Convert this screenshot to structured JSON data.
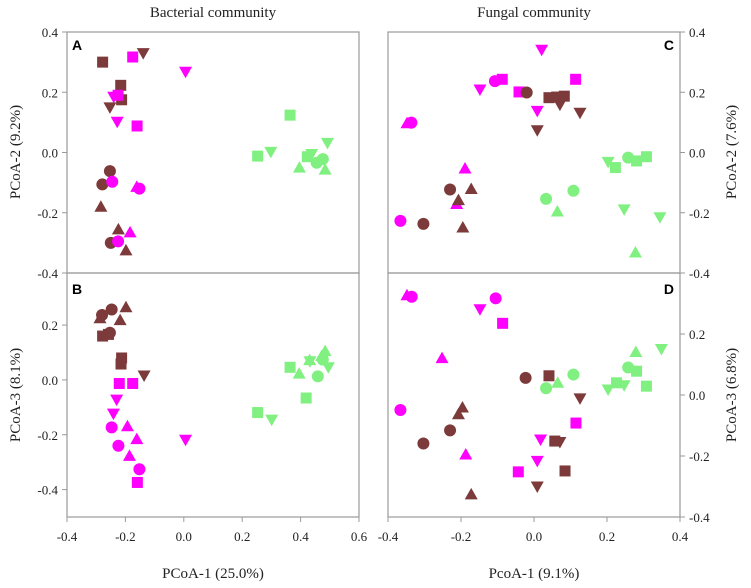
{
  "colors": {
    "site_brown": "#7d3a3a",
    "site_magenta": "#ff00ff",
    "site_green": "#80f080",
    "frame": "#999999"
  },
  "column_titles": {
    "left": "Bacterial community",
    "right": "Fungal community"
  },
  "axis_titles": {
    "left_x": "PCoA-1 (25.0%)",
    "right_x": "PcoA-1 (9.1%)",
    "A_y": "PCoA-2 (9.2%)",
    "B_y": "PCoA-3 (8.1%)",
    "C_y": "PCoA-2 (7.6%)",
    "D_y": "PCoA-3 (6.8%)"
  },
  "chart_data": [
    {
      "type": "scatter",
      "panel": "A",
      "title": "Bacterial community",
      "xlabel": "PCoA-1 (25.0%)",
      "ylabel": "PCoA-2 (9.2%)",
      "xlim": [
        -0.4,
        0.6
      ],
      "ylim": [
        -0.4,
        0.4
      ],
      "yticks": [
        0.4,
        0.2,
        0.0,
        -0.2,
        -0.4
      ],
      "ytick_labels": [
        "0.4",
        "0.2",
        "0.0",
        "-0.2",
        "-0.4"
      ],
      "grid": false,
      "points": [
        [
          -0.278,
          0.3,
          "brown",
          "square"
        ],
        [
          -0.175,
          0.317,
          "magenta",
          "square"
        ],
        [
          -0.139,
          0.33,
          "brown",
          "down"
        ],
        [
          0.006,
          0.268,
          "magenta",
          "down"
        ],
        [
          -0.216,
          0.223,
          "brown",
          "square"
        ],
        [
          -0.213,
          0.175,
          "brown",
          "square"
        ],
        [
          -0.24,
          0.185,
          "magenta",
          "down"
        ],
        [
          -0.225,
          0.19,
          "magenta",
          "square"
        ],
        [
          -0.253,
          0.15,
          "brown",
          "down"
        ],
        [
          -0.228,
          0.102,
          "magenta",
          "down"
        ],
        [
          -0.16,
          0.088,
          "magenta",
          "square"
        ],
        [
          0.364,
          0.124,
          "green",
          "square"
        ],
        [
          0.253,
          -0.012,
          "green",
          "square"
        ],
        [
          0.298,
          0.002,
          "green",
          "down"
        ],
        [
          0.492,
          0.032,
          "green",
          "down"
        ],
        [
          0.423,
          -0.014,
          "green",
          "square"
        ],
        [
          0.438,
          -0.005,
          "green",
          "down"
        ],
        [
          0.455,
          -0.034,
          "green",
          "circle"
        ],
        [
          0.476,
          -0.022,
          "green",
          "circle"
        ],
        [
          0.396,
          -0.05,
          "green",
          "up"
        ],
        [
          0.484,
          -0.057,
          "green",
          "up"
        ],
        [
          -0.253,
          -0.062,
          "brown",
          "circle"
        ],
        [
          -0.279,
          -0.106,
          "brown",
          "circle"
        ],
        [
          -0.245,
          -0.097,
          "magenta",
          "circle"
        ],
        [
          -0.161,
          -0.114,
          "magenta",
          "up"
        ],
        [
          -0.152,
          -0.12,
          "magenta",
          "circle"
        ],
        [
          -0.284,
          -0.18,
          "brown",
          "up"
        ],
        [
          -0.224,
          -0.255,
          "brown",
          "up"
        ],
        [
          -0.184,
          -0.265,
          "magenta",
          "up"
        ],
        [
          -0.25,
          -0.3,
          "brown",
          "circle"
        ],
        [
          -0.225,
          -0.295,
          "magenta",
          "circle"
        ],
        [
          -0.198,
          -0.325,
          "brown",
          "up"
        ]
      ]
    },
    {
      "type": "scatter",
      "panel": "B",
      "xlabel": "PCoA-1 (25.0%)",
      "ylabel": "PCoA-3 (8.1%)",
      "xlim": [
        -0.4,
        0.6
      ],
      "ylim": [
        -0.5,
        0.39
      ],
      "xticks": [
        -0.4,
        -0.2,
        0.0,
        0.2,
        0.4,
        0.6
      ],
      "xtick_labels": [
        "-0.4",
        "-0.2",
        "0.0",
        "0.2",
        "0.4",
        "0.6"
      ],
      "yticks": [
        0.2,
        0.0,
        -0.2,
        -0.4
      ],
      "ytick_labels": [
        "0.2",
        "0.0",
        "-0.2",
        "-0.4"
      ],
      "grid": false,
      "points": [
        [
          -0.287,
          0.225,
          "brown",
          "up"
        ],
        [
          -0.28,
          0.237,
          "brown",
          "circle"
        ],
        [
          -0.247,
          0.257,
          "brown",
          "circle"
        ],
        [
          -0.198,
          0.265,
          "brown",
          "up"
        ],
        [
          -0.218,
          0.218,
          "brown",
          "up"
        ],
        [
          -0.253,
          0.172,
          "brown",
          "circle"
        ],
        [
          -0.278,
          0.16,
          "brown",
          "square"
        ],
        [
          -0.258,
          0.166,
          "brown",
          "square"
        ],
        [
          -0.213,
          0.08,
          "brown",
          "square"
        ],
        [
          -0.215,
          0.058,
          "brown",
          "square"
        ],
        [
          -0.136,
          0.016,
          "brown",
          "down"
        ],
        [
          -0.221,
          -0.013,
          "magenta",
          "square"
        ],
        [
          -0.175,
          -0.013,
          "magenta",
          "square"
        ],
        [
          -0.23,
          -0.072,
          "magenta",
          "down"
        ],
        [
          -0.241,
          -0.123,
          "magenta",
          "down"
        ],
        [
          -0.247,
          -0.173,
          "magenta",
          "circle"
        ],
        [
          -0.193,
          -0.169,
          "magenta",
          "up"
        ],
        [
          -0.161,
          -0.216,
          "magenta",
          "up"
        ],
        [
          -0.224,
          -0.24,
          "magenta",
          "circle"
        ],
        [
          -0.186,
          -0.277,
          "magenta",
          "up"
        ],
        [
          -0.152,
          -0.326,
          "magenta",
          "circle"
        ],
        [
          -0.159,
          -0.374,
          "magenta",
          "square"
        ],
        [
          0.006,
          -0.218,
          "magenta",
          "down"
        ],
        [
          0.253,
          -0.119,
          "green",
          "square"
        ],
        [
          0.301,
          -0.145,
          "green",
          "down"
        ],
        [
          0.364,
          0.046,
          "green",
          "square"
        ],
        [
          0.395,
          0.023,
          "green",
          "up"
        ],
        [
          0.419,
          -0.066,
          "green",
          "square"
        ],
        [
          0.431,
          0.072,
          "green",
          "up"
        ],
        [
          0.432,
          0.068,
          "green",
          "down"
        ],
        [
          0.459,
          0.013,
          "green",
          "circle"
        ],
        [
          0.484,
          0.105,
          "green",
          "up"
        ],
        [
          0.472,
          0.087,
          "green",
          "up"
        ],
        [
          0.476,
          0.074,
          "green",
          "circle"
        ],
        [
          0.495,
          0.046,
          "green",
          "down"
        ]
      ]
    },
    {
      "type": "scatter",
      "panel": "C",
      "title": "Fungal community",
      "xlabel": "PcoA-1 (9.1%)",
      "ylabel": "PCoA-2 (7.6%)",
      "xlim": [
        -0.4,
        0.4
      ],
      "ylim": [
        -0.4,
        0.4
      ],
      "yticks": [
        0.4,
        0.2,
        0.0,
        -0.2,
        -0.4
      ],
      "ytick_labels": [
        "0.4",
        "0.2",
        "0.0",
        "-0.2",
        "-0.4"
      ],
      "grid": false,
      "points": [
        [
          0.021,
          0.341,
          "magenta",
          "down"
        ],
        [
          -0.107,
          0.237,
          "magenta",
          "circle"
        ],
        [
          -0.087,
          0.243,
          "magenta",
          "square"
        ],
        [
          0.114,
          0.243,
          "magenta",
          "square"
        ],
        [
          -0.148,
          0.209,
          "magenta",
          "down"
        ],
        [
          -0.041,
          0.201,
          "magenta",
          "square"
        ],
        [
          -0.02,
          0.199,
          "brown",
          "circle"
        ],
        [
          0.041,
          0.182,
          "brown",
          "square"
        ],
        [
          0.062,
          0.184,
          "brown",
          "square"
        ],
        [
          0.083,
          0.187,
          "brown",
          "square"
        ],
        [
          0.071,
          0.159,
          "brown",
          "down"
        ],
        [
          0.009,
          0.138,
          "magenta",
          "down"
        ],
        [
          0.126,
          0.132,
          "brown",
          "down"
        ],
        [
          0.009,
          0.074,
          "brown",
          "down"
        ],
        [
          -0.348,
          0.097,
          "magenta",
          "up"
        ],
        [
          -0.336,
          0.099,
          "magenta",
          "circle"
        ],
        [
          0.203,
          -0.031,
          "green",
          "down"
        ],
        [
          0.223,
          -0.05,
          "green",
          "square"
        ],
        [
          0.258,
          -0.017,
          "green",
          "circle"
        ],
        [
          0.281,
          -0.028,
          "green",
          "square"
        ],
        [
          0.308,
          -0.014,
          "green",
          "square"
        ],
        [
          -0.189,
          -0.053,
          "magenta",
          "up"
        ],
        [
          -0.23,
          -0.123,
          "brown",
          "circle"
        ],
        [
          -0.172,
          -0.121,
          "brown",
          "up"
        ],
        [
          -0.212,
          -0.171,
          "magenta",
          "up"
        ],
        [
          -0.207,
          -0.158,
          "brown",
          "up"
        ],
        [
          0.108,
          -0.127,
          "green",
          "circle"
        ],
        [
          0.033,
          -0.154,
          "green",
          "circle"
        ],
        [
          0.064,
          -0.196,
          "green",
          "up"
        ],
        [
          0.247,
          -0.189,
          "green",
          "down"
        ],
        [
          0.345,
          -0.215,
          "green",
          "down"
        ],
        [
          -0.366,
          -0.227,
          "magenta",
          "circle"
        ],
        [
          -0.303,
          -0.237,
          "brown",
          "circle"
        ],
        [
          -0.195,
          -0.249,
          "brown",
          "up"
        ],
        [
          0.278,
          -0.332,
          "green",
          "up"
        ]
      ]
    },
    {
      "type": "scatter",
      "panel": "D",
      "xlabel": "PcoA-1 (9.1%)",
      "ylabel": "PCoA-3 (6.8%)",
      "xlim": [
        -0.4,
        0.4
      ],
      "ylim": [
        -0.4,
        0.4
      ],
      "xticks": [
        -0.4,
        -0.2,
        0.0,
        0.2,
        0.4
      ],
      "xtick_labels": [
        "-0.4",
        "-0.2",
        "0.0",
        "0.2",
        "0.4"
      ],
      "yticks": [
        0.2,
        0.0,
        -0.2,
        -0.4
      ],
      "ytick_labels": [
        "0.2",
        "0.0",
        "-0.2",
        "-0.4"
      ],
      "grid": false,
      "points": [
        [
          -0.348,
          0.327,
          "magenta",
          "up"
        ],
        [
          -0.335,
          0.322,
          "magenta",
          "circle"
        ],
        [
          -0.105,
          0.317,
          "magenta",
          "circle"
        ],
        [
          -0.148,
          0.281,
          "magenta",
          "down"
        ],
        [
          -0.086,
          0.235,
          "magenta",
          "square"
        ],
        [
          -0.252,
          0.121,
          "magenta",
          "up"
        ],
        [
          -0.023,
          0.056,
          "brown",
          "circle"
        ],
        [
          0.041,
          0.063,
          "brown",
          "square"
        ],
        [
          0.033,
          0.022,
          "green",
          "circle"
        ],
        [
          0.065,
          0.04,
          "green",
          "up"
        ],
        [
          0.108,
          0.067,
          "green",
          "circle"
        ],
        [
          0.126,
          -0.011,
          "brown",
          "down"
        ],
        [
          0.203,
          0.018,
          "green",
          "down"
        ],
        [
          0.226,
          0.04,
          "green",
          "square"
        ],
        [
          0.247,
          0.032,
          "green",
          "down"
        ],
        [
          0.258,
          0.09,
          "green",
          "circle"
        ],
        [
          0.279,
          0.141,
          "green",
          "up"
        ],
        [
          0.281,
          0.078,
          "green",
          "square"
        ],
        [
          0.308,
          0.029,
          "green",
          "square"
        ],
        [
          0.349,
          0.151,
          "green",
          "down"
        ],
        [
          -0.366,
          -0.049,
          "magenta",
          "circle"
        ],
        [
          -0.196,
          -0.041,
          "brown",
          "up"
        ],
        [
          -0.207,
          -0.063,
          "brown",
          "up"
        ],
        [
          -0.23,
          -0.116,
          "brown",
          "circle"
        ],
        [
          -0.303,
          -0.159,
          "brown",
          "circle"
        ],
        [
          0.115,
          -0.092,
          "magenta",
          "square"
        ],
        [
          0.018,
          -0.146,
          "magenta",
          "down"
        ],
        [
          0.057,
          -0.151,
          "brown",
          "square"
        ],
        [
          0.071,
          -0.154,
          "brown",
          "down"
        ],
        [
          -0.187,
          -0.195,
          "magenta",
          "up"
        ],
        [
          0.009,
          -0.216,
          "magenta",
          "down"
        ],
        [
          -0.043,
          -0.252,
          "magenta",
          "square"
        ],
        [
          0.085,
          -0.249,
          "brown",
          "square"
        ],
        [
          0.009,
          -0.3,
          "brown",
          "down"
        ],
        [
          -0.172,
          -0.326,
          "brown",
          "up"
        ]
      ]
    }
  ]
}
